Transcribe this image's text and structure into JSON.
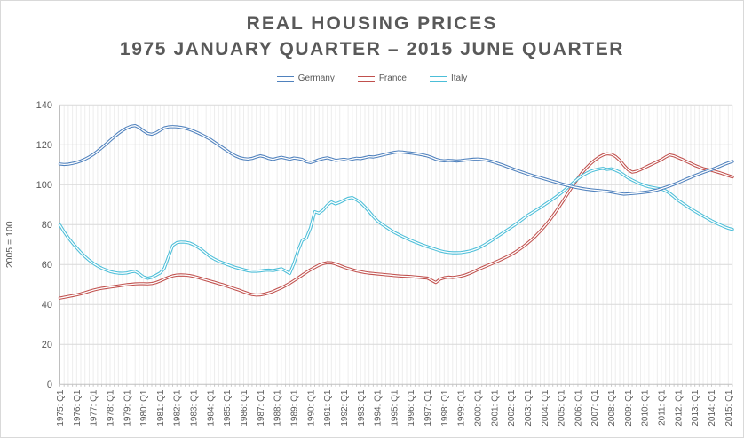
{
  "window": {
    "background": "#ffffff",
    "border_color": "#d9d9d9"
  },
  "title": {
    "line1": "REAL HOUSING PRICES",
    "line2": "1975 JANUARY QUARTER – 2015 JUNE QUARTER",
    "color": "#595959"
  },
  "legend": [
    {
      "label": "Germany",
      "color": "#4F81BD"
    },
    {
      "label": "France",
      "color": "#C0504D"
    },
    {
      "label": "Italy",
      "color": "#4CBED8"
    }
  ],
  "chart_data": {
    "type": "line",
    "title": "REAL HOUSING PRICES",
    "subtitle": "1975 JANUARY QUARTER – 2015 JUNE QUARTER",
    "frequency": "quarterly",
    "x_start": "1975 Q1",
    "x_end": "2015 Q2",
    "points_per_series": 162,
    "xlabel": "",
    "ylabel": "2005 = 100",
    "ylim": [
      0,
      140
    ],
    "y_ticks": [
      0,
      20,
      40,
      60,
      80,
      100,
      120,
      140
    ],
    "grid": {
      "horizontal": true,
      "vertical_quarterly": true,
      "h_color": "#d9d9d9",
      "v_color": "#ededed",
      "axis_color": "#bfbfbf",
      "tick_label_color": "#595959"
    },
    "legend_position": "top-center",
    "line_style": "double-stroke (colored line with white center stripe)",
    "x_tick_labels": [
      "1975: Q1",
      "1976: Q1",
      "1977: Q1",
      "1978: Q1",
      "1979: Q1",
      "1980: Q1",
      "1981: Q1",
      "1982: Q1",
      "1983: Q1",
      "1984: Q1",
      "1985: Q1",
      "1986: Q1",
      "1987: Q1",
      "1988: Q1",
      "1989: Q1",
      "1990: Q1",
      "1991: Q1",
      "1992: Q1",
      "1993: Q1",
      "1994: Q1",
      "1995: Q1",
      "1996: Q1",
      "1997: Q1",
      "1998: Q1",
      "1999: Q1",
      "2000: Q1",
      "2001: Q1",
      "2002: Q1",
      "2003: Q1",
      "2004: Q1",
      "2005: Q1",
      "2006: Q1",
      "2007: Q1",
      "2008: Q1",
      "2009: Q1",
      "2010: Q1",
      "2011: Q1",
      "2012: Q1",
      "2013: Q1",
      "2014: Q1",
      "2015: Q1"
    ],
    "series": [
      {
        "name": "Germany",
        "color": "#4F81BD",
        "values": [
          110.4,
          110.2,
          110.3,
          110.7,
          111.2,
          111.9,
          112.8,
          113.9,
          115.2,
          116.8,
          118.5,
          120.3,
          122.2,
          124.0,
          125.7,
          127.2,
          128.4,
          129.3,
          129.6,
          128.6,
          127.0,
          125.7,
          125.3,
          126.0,
          127.3,
          128.5,
          129.0,
          129.1,
          129.0,
          128.7,
          128.3,
          127.7,
          126.9,
          126.0,
          125.0,
          123.9,
          122.7,
          121.3,
          119.9,
          118.5,
          117.1,
          115.7,
          114.5,
          113.6,
          113.1,
          112.9,
          113.2,
          113.9,
          114.5,
          114.0,
          113.2,
          112.7,
          113.3,
          113.8,
          113.3,
          112.8,
          113.4,
          113.1,
          112.7,
          111.6,
          111.1,
          111.8,
          112.6,
          113.1,
          113.5,
          112.9,
          112.2,
          112.5,
          112.8,
          112.4,
          112.9,
          113.3,
          113.1,
          113.6,
          114.1,
          113.9,
          114.3,
          114.8,
          115.3,
          115.8,
          116.2,
          116.5,
          116.4,
          116.1,
          115.9,
          115.6,
          115.3,
          114.9,
          114.4,
          113.7,
          112.8,
          112.2,
          112.0,
          112.2,
          112.1,
          111.9,
          112.1,
          112.4,
          112.6,
          112.8,
          112.9,
          112.7,
          112.4,
          111.9,
          111.3,
          110.6,
          109.9,
          109.1,
          108.3,
          107.5,
          106.8,
          106.1,
          105.4,
          104.7,
          104.1,
          103.5,
          102.9,
          102.3,
          101.7,
          101.1,
          100.5,
          99.9,
          99.4,
          98.9,
          98.5,
          98.1,
          97.8,
          97.5,
          97.3,
          97.1,
          96.9,
          96.7,
          96.4,
          96.0,
          95.6,
          95.3,
          95.4,
          95.6,
          95.8,
          96.0,
          96.2,
          96.5,
          96.9,
          97.4,
          98.0,
          98.7,
          99.4,
          100.2,
          101.0,
          101.9,
          102.8,
          103.7,
          104.6,
          105.4,
          106.2,
          106.9,
          107.6,
          108.4,
          109.3,
          110.2,
          111.0,
          111.7
        ]
      },
      {
        "name": "France",
        "color": "#C0504D",
        "values": [
          43.2,
          43.6,
          44.0,
          44.4,
          44.8,
          45.3,
          45.9,
          46.6,
          47.2,
          47.7,
          48.1,
          48.4,
          48.7,
          49.0,
          49.3,
          49.6,
          49.9,
          50.1,
          50.3,
          50.4,
          50.4,
          50.3,
          50.5,
          51.0,
          51.8,
          52.7,
          53.6,
          54.3,
          54.7,
          54.8,
          54.7,
          54.5,
          54.1,
          53.5,
          52.9,
          52.3,
          51.7,
          51.1,
          50.5,
          49.9,
          49.2,
          48.5,
          47.8,
          47.1,
          46.3,
          45.6,
          45.0,
          44.7,
          44.8,
          45.2,
          45.8,
          46.5,
          47.4,
          48.3,
          49.4,
          50.6,
          51.9,
          53.3,
          54.7,
          56.1,
          57.4,
          58.6,
          59.7,
          60.5,
          61.0,
          60.9,
          60.3,
          59.5,
          58.7,
          58.0,
          57.4,
          56.8,
          56.4,
          56.0,
          55.7,
          55.5,
          55.3,
          55.1,
          54.9,
          54.7,
          54.5,
          54.3,
          54.2,
          54.1,
          54.0,
          53.8,
          53.6,
          53.4,
          53.2,
          52.1,
          51.0,
          52.7,
          53.4,
          53.7,
          53.5,
          53.8,
          54.2,
          54.7,
          55.5,
          56.4,
          57.4,
          58.3,
          59.2,
          60.1,
          61.0,
          61.9,
          62.9,
          63.9,
          65.0,
          66.2,
          67.6,
          69.1,
          70.8,
          72.6,
          74.6,
          76.8,
          79.1,
          81.6,
          84.4,
          87.4,
          90.5,
          93.7,
          97.0,
          100.2,
          103.2,
          106.0,
          108.4,
          110.5,
          112.3,
          113.8,
          114.9,
          115.5,
          115.3,
          114.2,
          112.3,
          109.8,
          107.5,
          106.3,
          106.7,
          107.6,
          108.6,
          109.6,
          110.6,
          111.6,
          112.6,
          113.9,
          115.0,
          114.5,
          113.6,
          112.7,
          111.7,
          110.7,
          109.7,
          108.9,
          108.1,
          107.6,
          107.2,
          106.6,
          106.0,
          105.3,
          104.6,
          103.9
        ]
      },
      {
        "name": "Italy",
        "color": "#4CBED8",
        "values": [
          79.8,
          76.4,
          73.4,
          70.8,
          68.4,
          66.1,
          64.0,
          62.2,
          60.6,
          59.3,
          58.2,
          57.3,
          56.5,
          56.0,
          55.7,
          55.6,
          55.8,
          56.3,
          56.6,
          55.4,
          53.8,
          53.1,
          53.6,
          54.6,
          55.8,
          58.2,
          64.0,
          69.5,
          71.0,
          71.3,
          71.2,
          70.8,
          69.9,
          68.7,
          67.3,
          65.6,
          63.9,
          62.7,
          61.7,
          60.9,
          60.1,
          59.3,
          58.6,
          58.0,
          57.4,
          56.9,
          56.6,
          56.6,
          56.8,
          57.1,
          57.2,
          57.0,
          57.4,
          57.9,
          56.8,
          55.5,
          60.5,
          67.0,
          72.2,
          73.3,
          78.5,
          86.5,
          85.8,
          87.3,
          89.8,
          91.4,
          90.4,
          91.2,
          92.2,
          93.2,
          93.6,
          92.4,
          91.0,
          88.9,
          86.6,
          84.1,
          81.9,
          80.3,
          78.9,
          77.5,
          76.2,
          75.1,
          74.1,
          73.1,
          72.2,
          71.3,
          70.5,
          69.7,
          69.0,
          68.3,
          67.6,
          66.9,
          66.4,
          66.1,
          65.9,
          65.9,
          66.0,
          66.3,
          66.7,
          67.3,
          68.1,
          69.1,
          70.3,
          71.6,
          73.0,
          74.4,
          75.8,
          77.2,
          78.6,
          80.0,
          81.5,
          83.1,
          84.7,
          86.0,
          87.3,
          88.6,
          90.0,
          91.4,
          92.8,
          94.3,
          95.9,
          97.6,
          99.4,
          101.2,
          103.0,
          104.5,
          105.7,
          106.7,
          107.4,
          107.9,
          108.2,
          107.7,
          108.0,
          107.3,
          106.3,
          104.9,
          103.4,
          102.3,
          101.3,
          100.4,
          99.6,
          99.0,
          98.6,
          98.2,
          97.9,
          97.0,
          95.7,
          94.0,
          92.2,
          90.8,
          89.4,
          88.0,
          86.7,
          85.5,
          84.3,
          83.1,
          81.9,
          80.9,
          79.9,
          79.0,
          78.2,
          77.6
        ]
      }
    ]
  }
}
